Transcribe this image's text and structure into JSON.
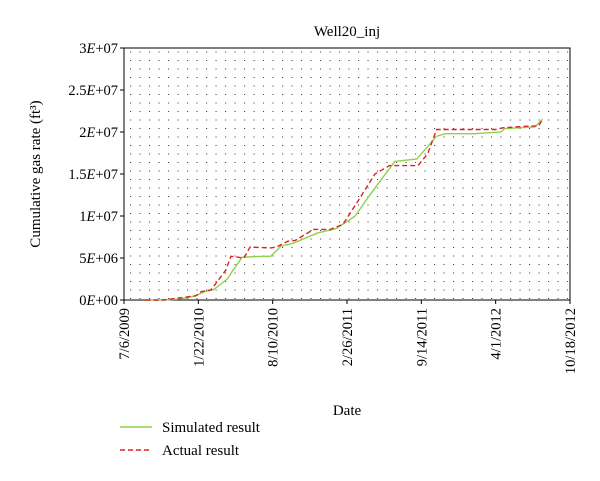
{
  "chart_data": {
    "type": "line",
    "title": "Well20_inj",
    "xlabel": "Date",
    "ylabel": "Cumulative gas rate (ft³)",
    "xlim": [
      "2009-07-06",
      "2012-10-18"
    ],
    "ylim": [
      0,
      30000000
    ],
    "x_ticks": [
      "7/6/2009",
      "1/22/2010",
      "8/10/2010",
      "2/26/2011",
      "9/14/2011",
      "4/1/2012",
      "10/18/2012"
    ],
    "y_ticks": [
      "0E+00",
      "5E+06",
      "1E+07",
      "1.5E+07",
      "2E+07",
      "2.5E+07",
      "3E+07"
    ],
    "grid": "dotted",
    "legend": "bottom-left, below plot",
    "series": [
      {
        "name": "Simulated result",
        "color": "#8fd14f",
        "style": "solid",
        "x": [
          "2009-09-02",
          "2009-10-20",
          "2009-11-25",
          "2009-12-20",
          "2010-01-15",
          "2010-02-08",
          "2010-03-03",
          "2010-04-10",
          "2010-04-26",
          "2010-05-20",
          "2010-07-12",
          "2010-08-05",
          "2010-09-01",
          "2010-10-06",
          "2010-12-10",
          "2011-01-28",
          "2011-03-20",
          "2011-04-25",
          "2011-06-01",
          "2011-07-05",
          "2011-09-02",
          "2011-10-25",
          "2011-11-18",
          "2012-02-05",
          "2012-04-15",
          "2012-04-25",
          "2012-07-15",
          "2012-08-05"
        ],
        "y": [
          0,
          0,
          100000,
          250000,
          500000,
          1000000,
          1200000,
          2500000,
          3600000,
          5100000,
          5200000,
          5200000,
          6400000,
          6800000,
          8000000,
          8500000,
          10000000,
          12300000,
          14500000,
          16500000,
          16800000,
          19500000,
          19800000,
          19800000,
          20000000,
          20400000,
          20600000,
          21500000
        ]
      },
      {
        "name": "Actual result",
        "color": "#e02020",
        "style": "dashed",
        "x": [
          "2009-09-02",
          "2009-10-20",
          "2009-11-25",
          "2010-01-15",
          "2010-01-30",
          "2010-02-25",
          "2010-04-05",
          "2010-04-20",
          "2010-05-25",
          "2010-06-10",
          "2010-08-05",
          "2010-08-20",
          "2010-09-20",
          "2010-10-10",
          "2010-11-28",
          "2011-01-12",
          "2011-02-15",
          "2011-03-28",
          "2011-05-12",
          "2011-06-20",
          "2011-07-12",
          "2011-09-05",
          "2011-10-01",
          "2011-10-25",
          "2012-01-15",
          "2012-04-01",
          "2012-04-20",
          "2012-07-01",
          "2012-07-25",
          "2012-08-05"
        ],
        "y": [
          0,
          0,
          200000,
          500000,
          1000000,
          1200000,
          3500000,
          5200000,
          5000000,
          6300000,
          6200000,
          6300000,
          7000000,
          7100000,
          8400000,
          8400000,
          9000000,
          11800000,
          15000000,
          16000000,
          16000000,
          16000000,
          17400000,
          20300000,
          20300000,
          20300000,
          20500000,
          20700000,
          20700000,
          21500000
        ]
      }
    ]
  }
}
